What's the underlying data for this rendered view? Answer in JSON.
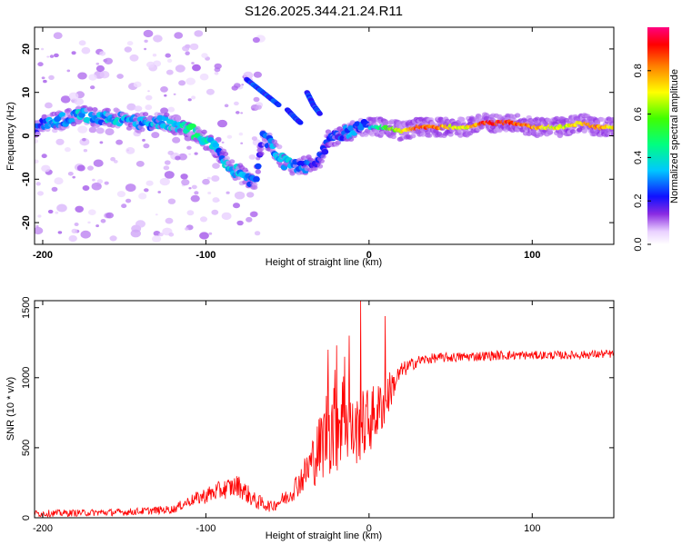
{
  "chart_data": [
    {
      "type": "heatmap",
      "title": "S126.2025.344.21.24.R11",
      "xlabel": "Height of straight line (km)",
      "ylabel": "Frequency (Hz)",
      "xlim": [
        -205,
        150
      ],
      "ylim": [
        -25,
        25
      ],
      "xticks": [
        -200,
        -100,
        0,
        100
      ],
      "yticks": [
        -20,
        -10,
        0,
        10,
        20
      ],
      "colorbar": {
        "label": "Normalized spectral amplitude",
        "ticks": [
          "0.0",
          "0.2",
          "0.4",
          "0.6",
          "0.8"
        ],
        "range": [
          0,
          1
        ]
      },
      "ridge": [
        [
          -204,
          2,
          0.2
        ],
        [
          -195,
          3,
          0.3
        ],
        [
          -185,
          4,
          0.3
        ],
        [
          -175,
          5,
          0.35
        ],
        [
          -165,
          4,
          0.3
        ],
        [
          -155,
          4,
          0.35
        ],
        [
          -145,
          3,
          0.3
        ],
        [
          -135,
          3,
          0.3
        ],
        [
          -125,
          3,
          0.35
        ],
        [
          -115,
          2,
          0.4
        ],
        [
          -108,
          1,
          0.45
        ],
        [
          -100,
          -1,
          0.4
        ],
        [
          -92,
          -4,
          0.3
        ],
        [
          -85,
          -7,
          0.35
        ],
        [
          -78,
          -9,
          0.3
        ],
        [
          -70,
          -11,
          0.25
        ],
        [
          -65,
          0,
          0.25
        ],
        [
          -58,
          -3,
          0.3
        ],
        [
          -52,
          -6,
          0.35
        ],
        [
          -45,
          -7,
          0.3
        ],
        [
          -38,
          -7,
          0.25
        ],
        [
          -30,
          -5,
          0.2
        ],
        [
          -25,
          -1,
          0.2
        ],
        [
          -20,
          0,
          0.2
        ],
        [
          -12,
          1,
          0.3
        ],
        [
          -5,
          2,
          0.25
        ],
        [
          0,
          2,
          0.3
        ],
        [
          10,
          2,
          0.5
        ],
        [
          20,
          1,
          0.7
        ],
        [
          30,
          2,
          0.85
        ],
        [
          40,
          2,
          0.85
        ],
        [
          50,
          2,
          0.7
        ],
        [
          60,
          2,
          0.7
        ],
        [
          70,
          3,
          0.85
        ],
        [
          80,
          3,
          0.9
        ],
        [
          90,
          3,
          0.85
        ],
        [
          100,
          2,
          0.8
        ],
        [
          110,
          2,
          0.7
        ],
        [
          120,
          2,
          0.65
        ],
        [
          130,
          3,
          0.75
        ],
        [
          140,
          2,
          0.8
        ],
        [
          150,
          2,
          0.7
        ]
      ],
      "branches": [
        [
          [
            -75,
            13
          ],
          [
            -65,
            10
          ],
          [
            -55,
            7
          ]
        ],
        [
          [
            -50,
            6
          ],
          [
            -45,
            4
          ],
          [
            -42,
            3
          ]
        ],
        [
          [
            -38,
            10
          ],
          [
            -34,
            7
          ],
          [
            -30,
            5
          ]
        ]
      ]
    },
    {
      "type": "line",
      "xlabel": "Height of straight line (km)",
      "ylabel": "SNR (10 * v/v)",
      "xlim": [
        -205,
        150
      ],
      "ylim": [
        0,
        1550
      ],
      "xticks": [
        -200,
        -100,
        0,
        100
      ],
      "yticks": [
        0,
        500,
        1000,
        1500
      ],
      "series": [
        {
          "name": "SNR",
          "color": "#ff0000",
          "envelope": [
            [
              -205,
              30,
              25
            ],
            [
              -150,
              40,
              25
            ],
            [
              -120,
              60,
              30
            ],
            [
              -110,
              120,
              40
            ],
            [
              -100,
              160,
              60
            ],
            [
              -90,
              200,
              70
            ],
            [
              -80,
              230,
              80
            ],
            [
              -70,
              120,
              60
            ],
            [
              -60,
              80,
              40
            ],
            [
              -50,
              150,
              60
            ],
            [
              -40,
              300,
              120
            ],
            [
              -30,
              500,
              250
            ],
            [
              -25,
              650,
              350
            ],
            [
              -20,
              700,
              400
            ],
            [
              -15,
              750,
              350
            ],
            [
              -10,
              600,
              250
            ],
            [
              -5,
              650,
              250
            ],
            [
              0,
              700,
              250
            ],
            [
              5,
              750,
              200
            ],
            [
              10,
              850,
              200
            ],
            [
              15,
              950,
              100
            ],
            [
              20,
              1050,
              60
            ],
            [
              30,
              1120,
              40
            ],
            [
              40,
              1140,
              35
            ],
            [
              60,
              1150,
              35
            ],
            [
              80,
              1160,
              35
            ],
            [
              100,
              1160,
              30
            ],
            [
              120,
              1160,
              30
            ],
            [
              150,
              1170,
              30
            ]
          ],
          "spikes": [
            [
              -20,
              1230
            ],
            [
              -5,
              1550
            ],
            [
              10,
              1440
            ],
            [
              -25,
              1200
            ],
            [
              -12,
              1300
            ],
            [
              -15,
              1150
            ]
          ]
        }
      ]
    }
  ]
}
